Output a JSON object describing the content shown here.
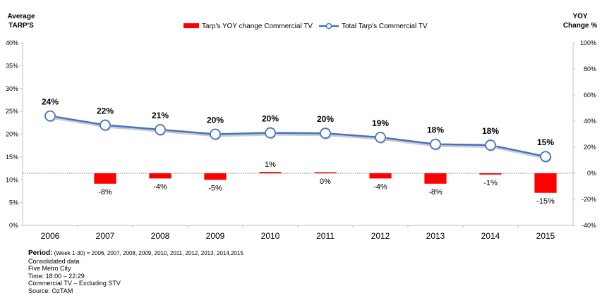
{
  "chart_data": {
    "type": "bar+line",
    "categories": [
      "2006",
      "2007",
      "2008",
      "2009",
      "2010",
      "2011",
      "2012",
      "2013",
      "2014",
      "2015"
    ],
    "left_axis": {
      "title_lines": [
        "Average",
        "TARP'S"
      ],
      "ticks": [
        "0%",
        "5%",
        "10%",
        "15%",
        "20%",
        "25%",
        "30%",
        "35%",
        "40%"
      ],
      "ylim": [
        0,
        40
      ]
    },
    "right_axis": {
      "title_lines": [
        "YOY",
        "Change %"
      ],
      "ticks": [
        "-40%",
        "-20%",
        "0%",
        "20%",
        "40%",
        "60%",
        "80%",
        "100%"
      ],
      "ylim": [
        -40,
        100
      ]
    },
    "series": [
      {
        "name": "Tarp's YOY change Commercial TV",
        "kind": "bar",
        "axis": "right",
        "color": "#ff0000",
        "values": [
          null,
          -8,
          -4,
          -5,
          1,
          0,
          -4,
          -8,
          -1,
          -15
        ],
        "labels": [
          "",
          "-8%",
          "-4%",
          "-5%",
          "1%",
          "0%",
          "-4%",
          "-8%",
          "-1%",
          "-15%"
        ]
      },
      {
        "name": "Total Tarp's  Commercial TV",
        "kind": "line",
        "axis": "left",
        "color": "#4472c4",
        "values": [
          24,
          22,
          21,
          20,
          20.3,
          20.2,
          19.3,
          17.8,
          17.6,
          15.1
        ],
        "labels": [
          "24%",
          "22%",
          "21%",
          "20%",
          "20%",
          "20%",
          "19%",
          "18%",
          "18%",
          "15%"
        ]
      }
    ],
    "grid": false,
    "legend_position": "top-center"
  },
  "notes": {
    "period_label": "Period:",
    "period_text": " (Week 1-30) = 2006, 2007, 2008, 2009, 2010, 2011, 2012, 2013, 2014,2015",
    "lines": [
      "Consolidated data",
      "Five Metro City",
      "Time: 18:00 – 22:29",
      "Commercial TV – Excluding STV",
      "Source: OzTAM"
    ]
  }
}
